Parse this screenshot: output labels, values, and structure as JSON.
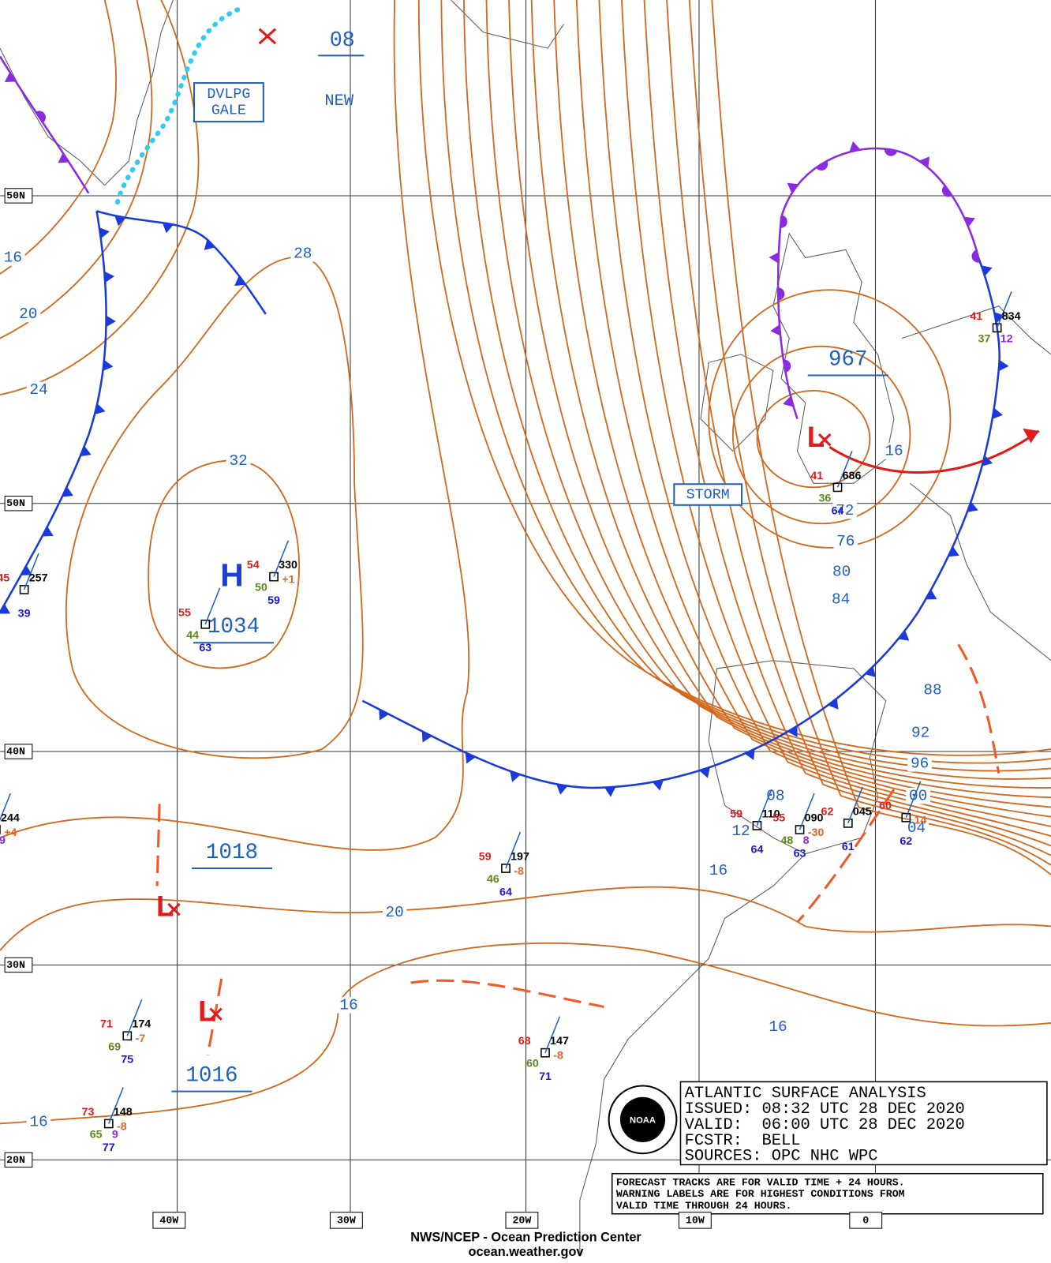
{
  "grid": {
    "lat_labels": [
      "50N",
      "50N",
      "40N",
      "30N",
      "20N"
    ],
    "lon_labels": [
      "40W",
      "30W",
      "20W",
      "10W",
      "0"
    ]
  },
  "new_center": {
    "pressure": "08",
    "label": "NEW"
  },
  "warnings": [
    {
      "lines": [
        "DVLPG",
        "GALE"
      ]
    },
    {
      "lines": [
        "STORM"
      ]
    }
  ],
  "centers": [
    {
      "symbol": "H",
      "pressure": "1034"
    },
    {
      "symbol": "L",
      "pressure": "967"
    },
    {
      "symbol": "L",
      "pressure": "1018"
    },
    {
      "symbol": "L",
      "pressure": "1016"
    }
  ],
  "isobar_labels": [
    "16",
    "20",
    "24",
    "28",
    "32",
    "20",
    "16",
    "16",
    "16",
    "72",
    "76",
    "80",
    "84",
    "88",
    "92",
    "96",
    "00",
    "04",
    "08",
    "12",
    "16",
    "16"
  ],
  "stations": [
    {
      "temp": "54",
      "pressure": "330",
      "tendency": "+1",
      "dew": "50",
      "wave": "59"
    },
    {
      "temp": "55",
      "dew": "44",
      "wave": "63"
    },
    {
      "temp": "45",
      "pressure": "257",
      "wave": "39"
    },
    {
      "temp": "59",
      "pressure": "197",
      "tendency": "-8",
      "dew": "46",
      "wave": "64"
    },
    {
      "temp": "71",
      "pressure": "174",
      "tendency": "-7",
      "dew": "69",
      "wave": "75"
    },
    {
      "temp": "68",
      "pressure": "147",
      "tendency": "-8",
      "dew": "60",
      "wave": "71"
    },
    {
      "temp": "73",
      "pressure": "148",
      "tendency": "-8",
      "dew": "65",
      "wave": "77",
      "other": "9"
    },
    {
      "temp": "41",
      "pressure": "834",
      "dew": "37",
      "other": "12"
    },
    {
      "temp": "41",
      "pressure": "686",
      "dew": "36",
      "wave": "64"
    },
    {
      "temp": "59",
      "pressure": "110",
      "wave": "64"
    },
    {
      "temp": "55",
      "pressure": "090",
      "tendency": "-30",
      "dew": "48",
      "wave": "63",
      "other": "8"
    },
    {
      "temp": "62",
      "pressure": "045",
      "wave": "61"
    },
    {
      "temp": "60",
      "tendency": "14",
      "wave": "62"
    },
    {
      "pressure": "244",
      "tendency": "+4",
      "other": "9"
    }
  ],
  "info_box": {
    "lines": [
      "ATLANTIC SURFACE ANALYSIS",
      "ISSUED: 08:32 UTC 28 DEC 2020",
      "VALID:  06:00 UTC 28 DEC 2020",
      "FCSTR:  BELL",
      "SOURCES: OPC NHC WPC"
    ]
  },
  "note_box": {
    "lines": [
      "FORECAST TRACKS ARE FOR VALID TIME + 24 HOURS.",
      "WARNING LABELS ARE FOR HIGHEST CONDITIONS FROM",
      "VALID TIME THROUGH 24 HOURS."
    ]
  },
  "footer": {
    "agency": "NWS/NCEP - Ocean Prediction Center",
    "url": "ocean.weather.gov"
  }
}
